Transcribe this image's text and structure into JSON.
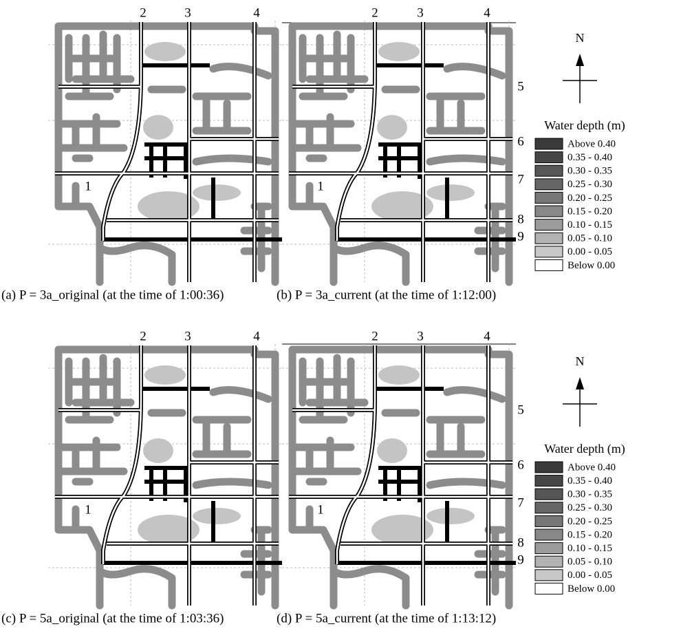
{
  "panels": [
    {
      "caption": "(a) P = 3a_original (at the time of 1:00:36)",
      "road_labels": [
        "2",
        "3",
        "4",
        "1"
      ]
    },
    {
      "caption": "(b) P = 3a_current (at the time of 1:12:00)",
      "road_labels": [
        "2",
        "3",
        "4",
        "5",
        "6",
        "7",
        "8",
        "9",
        "1"
      ]
    },
    {
      "caption": "(c) P = 5a_original (at the time of 1:03:36)",
      "road_labels": [
        "2",
        "3",
        "4",
        "1"
      ]
    },
    {
      "caption": "(d) P = 5a_current (at the time of 1:13:12)",
      "road_labels": [
        "2",
        "3",
        "4",
        "5",
        "6",
        "7",
        "8",
        "9",
        "1"
      ]
    }
  ],
  "legends": [
    {
      "north": "N",
      "title": "Water depth (m)",
      "items": [
        {
          "label": "Above 0.40",
          "color": "#3a3a3a"
        },
        {
          "label": "0.35 - 0.40",
          "color": "#474747"
        },
        {
          "label": "0.30 - 0.35",
          "color": "#565656"
        },
        {
          "label": "0.25 - 0.30",
          "color": "#666666"
        },
        {
          "label": "0.20 - 0.25",
          "color": "#777777"
        },
        {
          "label": "0.15 - 0.20",
          "color": "#888888"
        },
        {
          "label": "0.10 - 0.15",
          "color": "#9c9c9c"
        },
        {
          "label": "0.05 - 0.10",
          "color": "#b2b2b2"
        },
        {
          "label": "0.00 - 0.05",
          "color": "#c8c8c8"
        },
        {
          "label": "Below 0.00",
          "color": "#ffffff"
        }
      ]
    },
    {
      "north": "N",
      "title": "Water depth (m)",
      "items": [
        {
          "label": "Above 0.40",
          "color": "#3a3a3a"
        },
        {
          "label": "0.35 - 0.40",
          "color": "#474747"
        },
        {
          "label": "0.30 - 0.35",
          "color": "#565656"
        },
        {
          "label": "0.25 - 0.30",
          "color": "#666666"
        },
        {
          "label": "0.20 - 0.25",
          "color": "#777777"
        },
        {
          "label": "0.15 - 0.20",
          "color": "#888888"
        },
        {
          "label": "0.10 - 0.15",
          "color": "#9c9c9c"
        },
        {
          "label": "0.05 - 0.10",
          "color": "#b2b2b2"
        },
        {
          "label": "0.00 - 0.05",
          "color": "#c8c8c8"
        },
        {
          "label": "Below 0.00",
          "color": "#ffffff"
        }
      ]
    }
  ]
}
